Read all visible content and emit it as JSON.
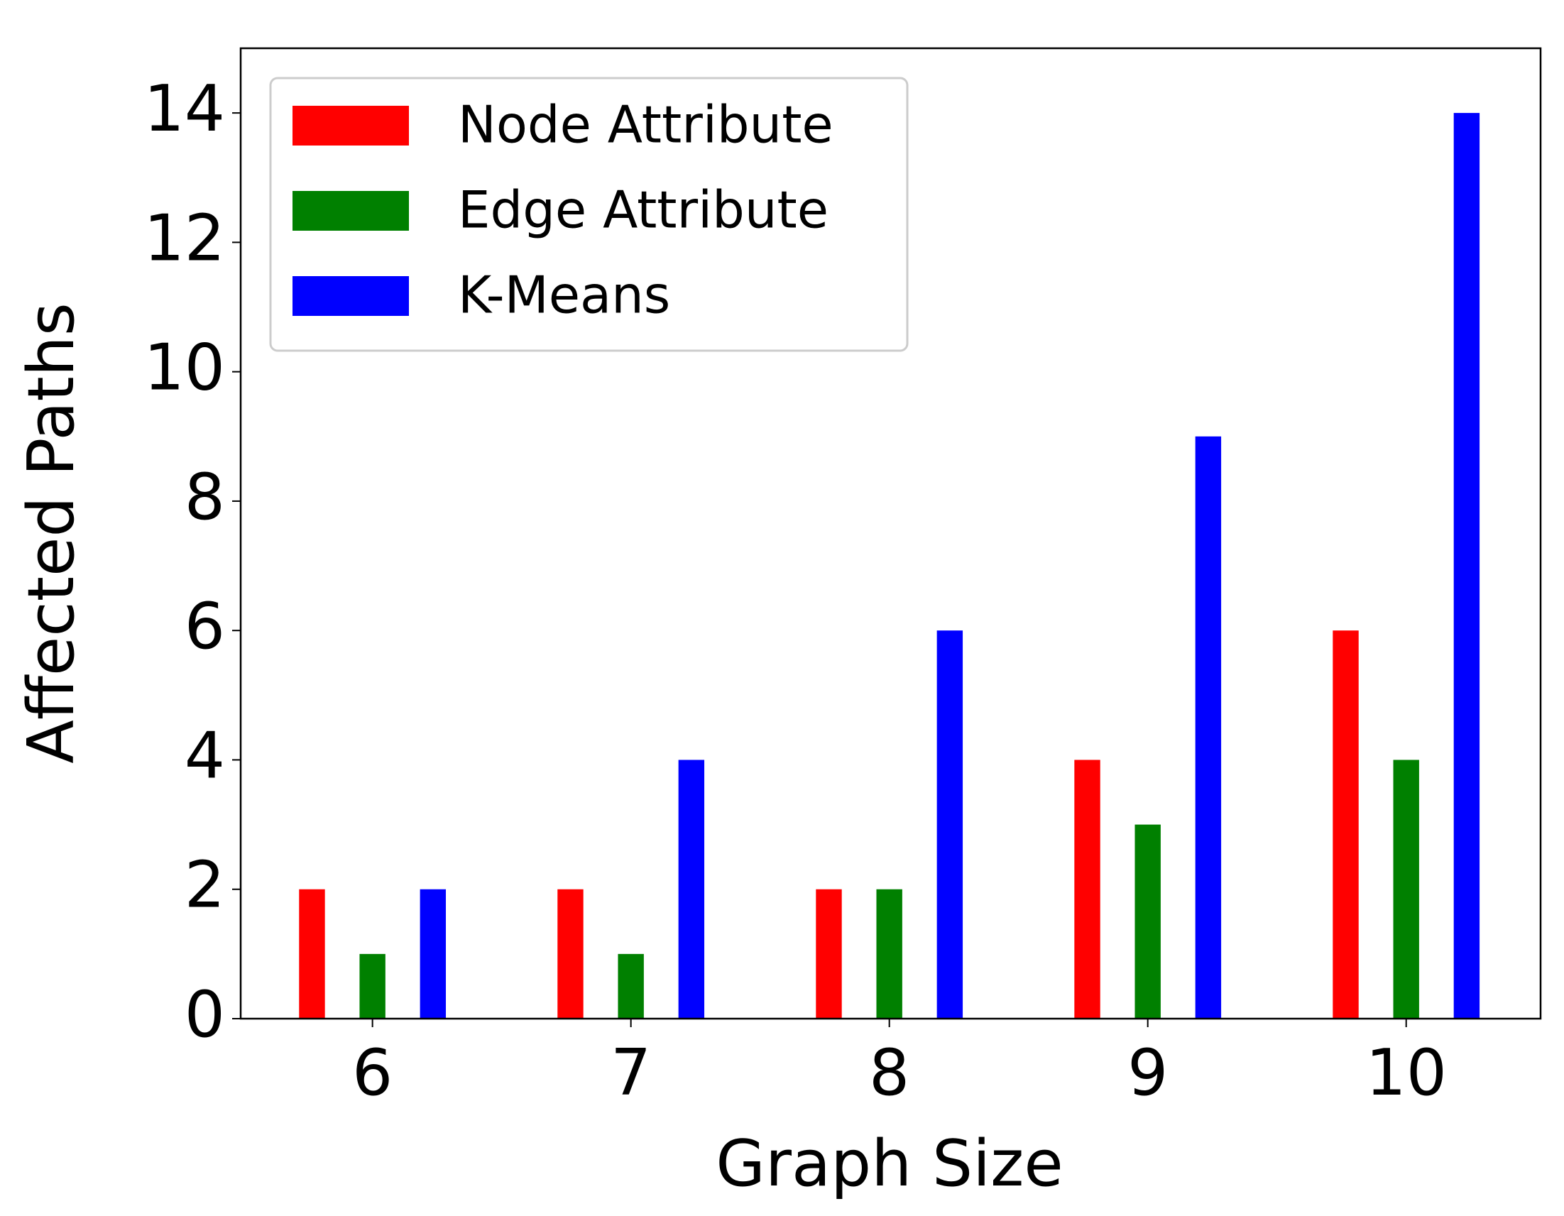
{
  "chart_data": {
    "type": "bar",
    "xlabel": "Graph Size",
    "ylabel": "Affected Paths",
    "categories": [
      "6",
      "7",
      "8",
      "9",
      "10"
    ],
    "series": [
      {
        "name": "Node Attribute",
        "color": "#ff0000",
        "values": [
          2,
          2,
          2,
          4,
          6
        ]
      },
      {
        "name": "Edge Attribute",
        "color": "#008000",
        "values": [
          1,
          1,
          2,
          3,
          4
        ]
      },
      {
        "name": "K-Means",
        "color": "#0000ff",
        "values": [
          2,
          4,
          6,
          9,
          14
        ]
      }
    ],
    "ylim": [
      0,
      15
    ],
    "yticks": [
      0,
      2,
      4,
      6,
      8,
      10,
      12,
      14
    ],
    "legend": "upper left"
  }
}
